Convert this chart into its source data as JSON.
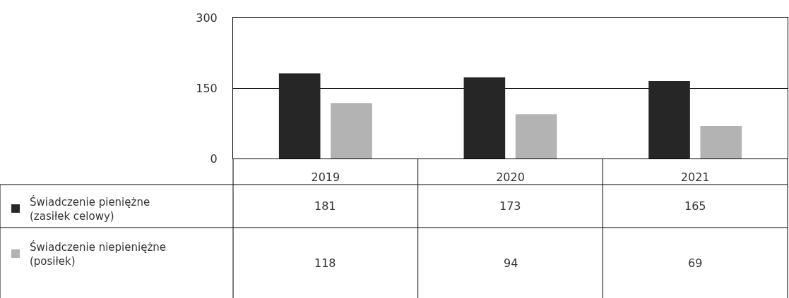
{
  "chart_data": {
    "type": "bar",
    "categories": [
      "2019",
      "2020",
      "2021"
    ],
    "series": [
      {
        "name": "Świadczenie pieniężne\n(zasiłek celowy)",
        "color": "#262626",
        "values": [
          181,
          173,
          165
        ]
      },
      {
        "name": "Świadczenie niepieniężne\n(posiłek)",
        "color": "#b3b3b3",
        "values": [
          118,
          94,
          69
        ]
      }
    ],
    "ylim": [
      0,
      300
    ],
    "yticks": [
      0,
      150,
      300
    ],
    "grid": "y",
    "data_labels": true,
    "legend": "bottom left"
  }
}
